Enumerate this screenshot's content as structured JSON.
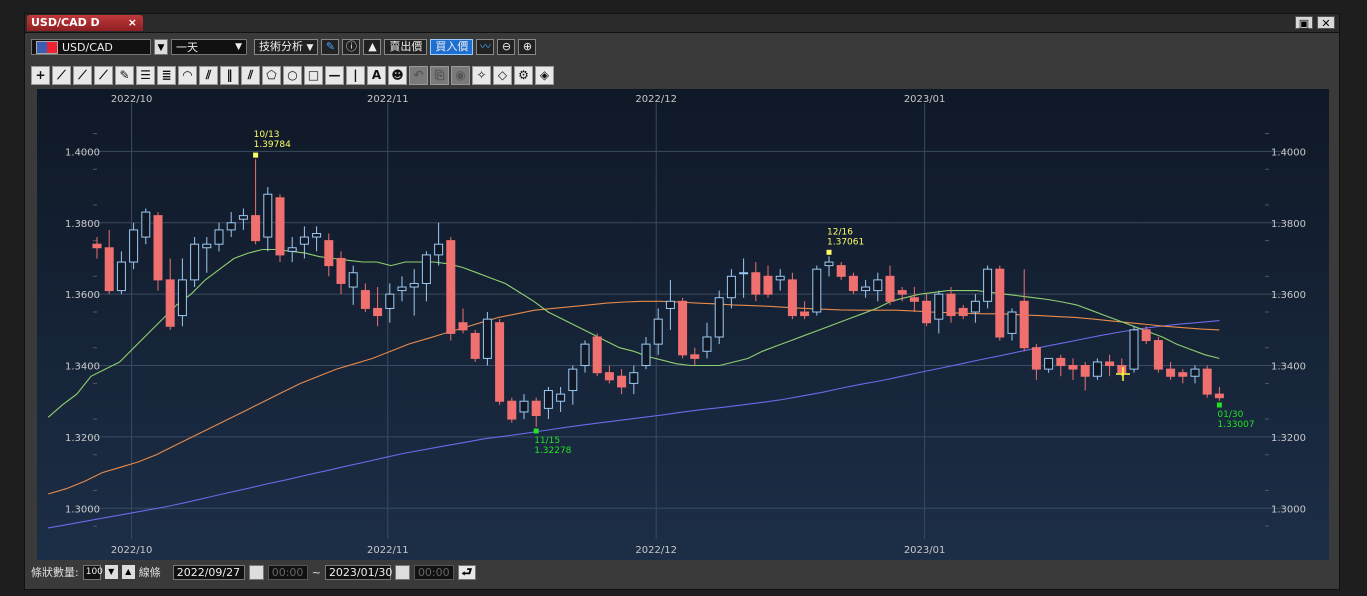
{
  "window": {
    "tab_label": "USD/CAD D",
    "tab_close": "×",
    "restore_icon": "restore-icon",
    "close_label": "✕"
  },
  "toolbar": {
    "symbol": "USD/CAD",
    "period": "一天",
    "tech_analysis": "技術分析",
    "sell_label": "賣出價",
    "buy_label": "買入價",
    "zoom_in": "+",
    "zoom_out": "-"
  },
  "drawing_tools": [
    "crosshair-icon",
    "trendline-icon",
    "ray-icon",
    "extended-line-icon",
    "pencil-icon",
    "horizontal-lines-icon",
    "fibonacci-icon",
    "fan-icon",
    "gann-fan-icon",
    "vertical-lines-icon",
    "channel-icon",
    "pentagon-icon",
    "circle-icon",
    "rectangle-icon",
    "hline-icon",
    "vline-icon",
    "text-icon",
    "icon-icon",
    "undo-icon",
    "copy-icon",
    "magnet-icon",
    "wrench-icon",
    "eraser-icon",
    "settings-icon",
    "pin-icon"
  ],
  "bottom": {
    "count_label": "條狀數量:",
    "count_value": "100",
    "line_label": "線條",
    "start_date": "2022/09/27",
    "start_time": "00:00",
    "tilde": "~",
    "end_date": "2023/01/30",
    "end_time": "00:00"
  },
  "chart_data": {
    "type": "candlestick",
    "symbol": "USD/CAD",
    "timeframe": "D",
    "ylim": [
      1.29,
      1.413
    ],
    "y_ticks": [
      "1.4000",
      "1.3800",
      "1.3600",
      "1.3400",
      "1.3200",
      "1.3000"
    ],
    "x_month_labels": [
      "2022/10",
      "2022/11",
      "2022/12",
      "2023/01"
    ],
    "x_month_index": [
      3,
      24,
      46,
      68
    ],
    "grid": true,
    "colors": {
      "background_top": "#0f1826",
      "background_bottom": "#1c2e47",
      "up": "#9ec9f0",
      "down": "#f07070",
      "ma_short": "#8fcf6f",
      "ma_mid": "#e88a4a",
      "ma_long": "#6a6ae8",
      "annotation_high": "#ffff66",
      "annotation_low": "#22e022",
      "grid": "#3a4a60",
      "text": "#c8c8c8"
    },
    "ohlc": [
      [
        1.374,
        1.376,
        1.37,
        1.373
      ],
      [
        1.373,
        1.378,
        1.36,
        1.361
      ],
      [
        1.361,
        1.372,
        1.36,
        1.369
      ],
      [
        1.369,
        1.38,
        1.367,
        1.378
      ],
      [
        1.376,
        1.384,
        1.374,
        1.383
      ],
      [
        1.382,
        1.383,
        1.361,
        1.364
      ],
      [
        1.364,
        1.37,
        1.35,
        1.351
      ],
      [
        1.354,
        1.37,
        1.351,
        1.364
      ],
      [
        1.364,
        1.376,
        1.362,
        1.374
      ],
      [
        1.373,
        1.376,
        1.366,
        1.374
      ],
      [
        1.374,
        1.38,
        1.372,
        1.378
      ],
      [
        1.378,
        1.383,
        1.376,
        1.38
      ],
      [
        1.381,
        1.384,
        1.378,
        1.382
      ],
      [
        1.382,
        1.3978,
        1.374,
        1.375
      ],
      [
        1.376,
        1.39,
        1.372,
        1.388
      ],
      [
        1.387,
        1.388,
        1.369,
        1.371
      ],
      [
        1.372,
        1.376,
        1.369,
        1.373
      ],
      [
        1.374,
        1.379,
        1.37,
        1.376
      ],
      [
        1.376,
        1.379,
        1.372,
        1.377
      ],
      [
        1.375,
        1.377,
        1.365,
        1.368
      ],
      [
        1.37,
        1.372,
        1.36,
        1.363
      ],
      [
        1.362,
        1.368,
        1.357,
        1.366
      ],
      [
        1.361,
        1.363,
        1.355,
        1.356
      ],
      [
        1.356,
        1.362,
        1.351,
        1.354
      ],
      [
        1.356,
        1.363,
        1.352,
        1.36
      ],
      [
        1.361,
        1.365,
        1.358,
        1.362
      ],
      [
        1.362,
        1.367,
        1.354,
        1.363
      ],
      [
        1.363,
        1.372,
        1.358,
        1.371
      ],
      [
        1.371,
        1.38,
        1.368,
        1.374
      ],
      [
        1.375,
        1.376,
        1.347,
        1.349
      ],
      [
        1.352,
        1.356,
        1.349,
        1.35
      ],
      [
        1.349,
        1.35,
        1.341,
        1.342
      ],
      [
        1.342,
        1.355,
        1.34,
        1.353
      ],
      [
        1.352,
        1.353,
        1.329,
        1.33
      ],
      [
        1.33,
        1.331,
        1.324,
        1.325
      ],
      [
        1.327,
        1.332,
        1.325,
        1.33
      ],
      [
        1.33,
        1.331,
        1.3228,
        1.326
      ],
      [
        1.328,
        1.334,
        1.325,
        1.333
      ],
      [
        1.33,
        1.334,
        1.327,
        1.332
      ],
      [
        1.333,
        1.34,
        1.329,
        1.339
      ],
      [
        1.34,
        1.347,
        1.338,
        1.346
      ],
      [
        1.348,
        1.349,
        1.337,
        1.338
      ],
      [
        1.338,
        1.34,
        1.335,
        1.336
      ],
      [
        1.337,
        1.339,
        1.332,
        1.334
      ],
      [
        1.335,
        1.34,
        1.332,
        1.338
      ],
      [
        1.34,
        1.348,
        1.339,
        1.346
      ],
      [
        1.346,
        1.356,
        1.343,
        1.353
      ],
      [
        1.356,
        1.364,
        1.35,
        1.358
      ],
      [
        1.358,
        1.359,
        1.342,
        1.343
      ],
      [
        1.343,
        1.345,
        1.34,
        1.342
      ],
      [
        1.344,
        1.352,
        1.342,
        1.348
      ],
      [
        1.348,
        1.361,
        1.346,
        1.359
      ],
      [
        1.359,
        1.367,
        1.356,
        1.365
      ],
      [
        1.366,
        1.37,
        1.359,
        1.366
      ],
      [
        1.366,
        1.369,
        1.358,
        1.36
      ],
      [
        1.365,
        1.368,
        1.359,
        1.36
      ],
      [
        1.364,
        1.367,
        1.361,
        1.365
      ],
      [
        1.364,
        1.366,
        1.353,
        1.354
      ],
      [
        1.355,
        1.358,
        1.353,
        1.354
      ],
      [
        1.355,
        1.368,
        1.354,
        1.367
      ],
      [
        1.368,
        1.3706,
        1.365,
        1.369
      ],
      [
        1.368,
        1.369,
        1.364,
        1.365
      ],
      [
        1.365,
        1.366,
        1.36,
        1.361
      ],
      [
        1.361,
        1.364,
        1.359,
        1.362
      ],
      [
        1.361,
        1.366,
        1.358,
        1.364
      ],
      [
        1.365,
        1.368,
        1.357,
        1.358
      ],
      [
        1.361,
        1.362,
        1.358,
        1.36
      ],
      [
        1.359,
        1.362,
        1.355,
        1.358
      ],
      [
        1.358,
        1.36,
        1.351,
        1.352
      ],
      [
        1.353,
        1.361,
        1.349,
        1.36
      ],
      [
        1.36,
        1.362,
        1.352,
        1.354
      ],
      [
        1.356,
        1.357,
        1.353,
        1.354
      ],
      [
        1.355,
        1.36,
        1.352,
        1.358
      ],
      [
        1.358,
        1.368,
        1.356,
        1.367
      ],
      [
        1.367,
        1.368,
        1.347,
        1.348
      ],
      [
        1.349,
        1.356,
        1.347,
        1.355
      ],
      [
        1.358,
        1.367,
        1.344,
        1.345
      ],
      [
        1.345,
        1.346,
        1.336,
        1.339
      ],
      [
        1.339,
        1.342,
        1.338,
        1.342
      ],
      [
        1.342,
        1.343,
        1.337,
        1.34
      ],
      [
        1.34,
        1.342,
        1.336,
        1.339
      ],
      [
        1.34,
        1.341,
        1.333,
        1.337
      ],
      [
        1.337,
        1.342,
        1.336,
        1.341
      ],
      [
        1.341,
        1.343,
        1.337,
        1.34
      ],
      [
        1.34,
        1.342,
        1.337,
        1.338
      ],
      [
        1.339,
        1.351,
        1.338,
        1.35
      ],
      [
        1.35,
        1.351,
        1.346,
        1.347
      ],
      [
        1.347,
        1.348,
        1.338,
        1.339
      ],
      [
        1.339,
        1.341,
        1.336,
        1.337
      ],
      [
        1.338,
        1.339,
        1.335,
        1.337
      ],
      [
        1.337,
        1.34,
        1.335,
        1.339
      ],
      [
        1.339,
        1.34,
        1.331,
        1.332
      ],
      [
        1.332,
        1.334,
        1.3301,
        1.331
      ]
    ],
    "ma_short": [
      1.3255,
      1.329,
      1.332,
      1.337,
      1.339,
      1.341,
      1.345,
      1.349,
      1.353,
      1.357,
      1.36,
      1.364,
      1.367,
      1.37,
      1.3715,
      1.3725,
      1.3725,
      1.372,
      1.3715,
      1.3705,
      1.37,
      1.3695,
      1.369,
      1.369,
      1.368,
      1.369,
      1.369,
      1.369,
      1.3685,
      1.3675,
      1.366,
      1.3645,
      1.363,
      1.3605,
      1.358,
      1.355,
      1.353,
      1.351,
      1.349,
      1.347,
      1.345,
      1.344,
      1.3425,
      1.3415,
      1.3405,
      1.34,
      1.34,
      1.34,
      1.341,
      1.342,
      1.344,
      1.3455,
      1.347,
      1.3485,
      1.35,
      1.3515,
      1.353,
      1.3545,
      1.356,
      1.358,
      1.359,
      1.36,
      1.3605,
      1.361,
      1.361,
      1.361,
      1.3605,
      1.36,
      1.3595,
      1.359,
      1.3585,
      1.3578,
      1.357,
      1.3555,
      1.354,
      1.3525,
      1.351,
      1.3495,
      1.348,
      1.346,
      1.3445,
      1.343,
      1.342
    ],
    "ma_mid": [
      1.304,
      1.3055,
      1.3075,
      1.31,
      1.3115,
      1.313,
      1.315,
      1.3175,
      1.32,
      1.3225,
      1.325,
      1.3275,
      1.33,
      1.3325,
      1.335,
      1.337,
      1.339,
      1.3405,
      1.342,
      1.344,
      1.346,
      1.3475,
      1.349,
      1.3505,
      1.352,
      1.3535,
      1.3545,
      1.3555,
      1.356,
      1.3565,
      1.357,
      1.3575,
      1.3578,
      1.358,
      1.358,
      1.3578,
      1.3575,
      1.3573,
      1.357,
      1.3568,
      1.3566,
      1.3563,
      1.356,
      1.3558,
      1.3556,
      1.3555,
      1.3555,
      1.3555,
      1.3553,
      1.355,
      1.3548,
      1.3546,
      1.3545,
      1.3545,
      1.3542,
      1.354,
      1.3537,
      1.3535,
      1.353,
      1.3525,
      1.352,
      1.3515,
      1.351,
      1.3506,
      1.3502,
      1.35
    ],
    "ma_long": [
      1.2945,
      1.2955,
      1.2965,
      1.2975,
      1.2985,
      1.2995,
      1.3005,
      1.3017,
      1.303,
      1.3043,
      1.3055,
      1.3068,
      1.308,
      1.3093,
      1.3105,
      1.3118,
      1.313,
      1.3143,
      1.3155,
      1.3165,
      1.3175,
      1.3185,
      1.3195,
      1.3202,
      1.321,
      1.3218,
      1.3226,
      1.3234,
      1.3241,
      1.3248,
      1.3255,
      1.3262,
      1.327,
      1.3277,
      1.3283,
      1.329,
      1.3297,
      1.3305,
      1.3315,
      1.3325,
      1.3337,
      1.3348,
      1.3358,
      1.337,
      1.3382,
      1.3393,
      1.3405,
      1.3417,
      1.3428,
      1.344,
      1.3451,
      1.3462,
      1.3473,
      1.3484,
      1.3494,
      1.3503,
      1.351,
      1.3516,
      1.3521,
      1.3526
    ],
    "annotations": [
      {
        "label_date": "10/13",
        "label_price": "1.39784",
        "index": 13,
        "value": 1.39784,
        "position": "above",
        "kind": "high"
      },
      {
        "label_date": "12/16",
        "label_price": "1.37061",
        "index": 60,
        "value": 1.37061,
        "position": "above",
        "kind": "high"
      },
      {
        "label_date": "11/15",
        "label_price": "1.32278",
        "index": 36,
        "value": 1.32278,
        "position": "below",
        "kind": "low"
      },
      {
        "label_date": "01/30",
        "label_price": "1.33007",
        "index": 92,
        "value": 1.33007,
        "position": "below",
        "kind": "low"
      }
    ]
  }
}
